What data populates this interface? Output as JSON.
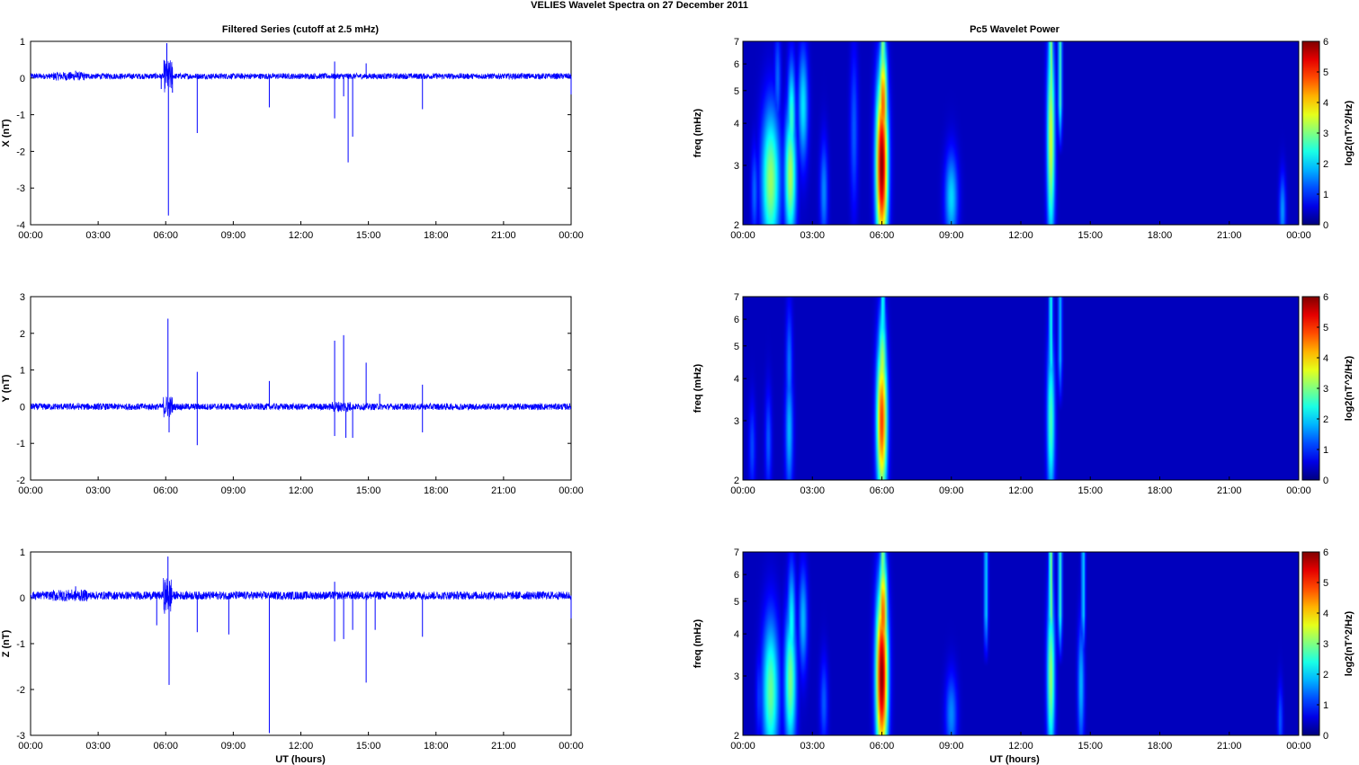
{
  "figure": {
    "suptitle": "VELIES Wavelet Spectra on 27 December  2011",
    "left_title": "Filtered Series (cutoff at 2.5 mHz)",
    "right_title": "Pc5 Wavelet Power",
    "xlabel": "UT (hours)",
    "x_ticks": [
      "00:00",
      "03:00",
      "06:00",
      "09:00",
      "12:00",
      "15:00",
      "18:00",
      "21:00",
      "00:00"
    ],
    "freq_label": "freq (mHz)",
    "colorbar_label": "log2(nT^2/Hz)",
    "colorbar_ticks": [
      "0",
      "1",
      "2",
      "3",
      "4",
      "5",
      "6"
    ],
    "colormap": "jet",
    "series_color": "#0000ff",
    "axis_color": "#000000",
    "spectrum_background": "#00008f"
  },
  "chart_data": [
    {
      "type": "line",
      "panel": "X filtered series",
      "ylabel": "X (nT)",
      "xlim": [
        0,
        24
      ],
      "ylim": [
        -4,
        1
      ],
      "y_ticks": [
        "1",
        "0",
        "-1",
        "-2",
        "-3",
        "-4"
      ],
      "baseline": 0.05,
      "noise_amplitude": 0.08,
      "bursts": [
        [
          1.0,
          2.4,
          0.12
        ],
        [
          5.9,
          6.3,
          0.45
        ]
      ],
      "spikes": [
        [
          2.0,
          0.2
        ],
        [
          5.8,
          -0.3
        ],
        [
          6.05,
          0.95
        ],
        [
          6.12,
          -3.75
        ],
        [
          6.3,
          -0.4
        ],
        [
          7.4,
          -1.5
        ],
        [
          10.6,
          -0.8
        ],
        [
          13.5,
          0.45
        ],
        [
          13.5,
          -1.1
        ],
        [
          13.9,
          -0.5
        ],
        [
          14.1,
          -2.3
        ],
        [
          14.3,
          -1.6
        ],
        [
          14.9,
          0.4
        ],
        [
          17.4,
          -0.85
        ],
        [
          24.0,
          -0.45
        ]
      ]
    },
    {
      "type": "line",
      "panel": "Y filtered series",
      "ylabel": "Y (nT)",
      "xlim": [
        0,
        24
      ],
      "ylim": [
        -2,
        3
      ],
      "y_ticks": [
        "3",
        "2",
        "1",
        "0",
        "-1",
        "-2"
      ],
      "baseline": 0.0,
      "noise_amplitude": 0.09,
      "bursts": [
        [
          5.9,
          6.3,
          0.3
        ],
        [
          13.4,
          14.2,
          0.15
        ]
      ],
      "spikes": [
        [
          6.1,
          2.4
        ],
        [
          6.15,
          -0.7
        ],
        [
          7.4,
          0.95
        ],
        [
          7.4,
          -1.05
        ],
        [
          9.7,
          0.1
        ],
        [
          10.6,
          0.7
        ],
        [
          13.5,
          1.8
        ],
        [
          13.5,
          -0.8
        ],
        [
          13.9,
          1.95
        ],
        [
          14.0,
          -0.85
        ],
        [
          14.3,
          -0.85
        ],
        [
          14.9,
          1.2
        ],
        [
          15.5,
          0.35
        ],
        [
          17.4,
          0.6
        ],
        [
          17.4,
          -0.7
        ]
      ]
    },
    {
      "type": "line",
      "panel": "Z filtered series",
      "ylabel": "Z (nT)",
      "xlim": [
        0,
        24
      ],
      "ylim": [
        -3,
        1
      ],
      "y_ticks": [
        "1",
        "0",
        "-1",
        "-2",
        "-3"
      ],
      "baseline": 0.05,
      "noise_amplitude": 0.09,
      "bursts": [
        [
          1.0,
          2.5,
          0.13
        ],
        [
          5.9,
          6.3,
          0.4
        ]
      ],
      "spikes": [
        [
          2.0,
          0.25
        ],
        [
          5.6,
          -0.6
        ],
        [
          6.1,
          0.9
        ],
        [
          6.15,
          -1.9
        ],
        [
          7.4,
          -0.75
        ],
        [
          8.8,
          -0.8
        ],
        [
          10.6,
          -2.95
        ],
        [
          13.5,
          0.35
        ],
        [
          13.5,
          -0.95
        ],
        [
          13.9,
          -0.9
        ],
        [
          14.3,
          -0.7
        ],
        [
          14.9,
          -1.85
        ],
        [
          15.3,
          -0.7
        ],
        [
          17.4,
          -0.85
        ],
        [
          24.0,
          -0.45
        ]
      ]
    },
    {
      "type": "heatmap",
      "panel": "X wavelet power",
      "ylabel": "freq (mHz)",
      "xlim": [
        0,
        24
      ],
      "ylim": [
        2,
        7
      ],
      "y_scale": "log",
      "y_ticks": [
        "7",
        "6",
        "5",
        "4",
        "3",
        "2"
      ],
      "colorbar": {
        "min": 0,
        "max": 6,
        "label": "log2(nT^2/Hz)"
      },
      "blobs": [
        {
          "t": 6.0,
          "f": 3.0,
          "wt": 0.18,
          "wf": 0.42,
          "power": 6
        },
        {
          "t": 6.05,
          "f": 4.5,
          "wt": 0.13,
          "wf": 0.3,
          "power": 4.7
        },
        {
          "t": 13.3,
          "f": 3.6,
          "wt": 0.12,
          "wf": 0.5,
          "power": 3.4
        },
        {
          "t": 1.2,
          "f": 2.7,
          "wt": 0.28,
          "wf": 0.35,
          "power": 3.0
        },
        {
          "t": 2.05,
          "f": 2.8,
          "wt": 0.18,
          "wf": 0.32,
          "power": 3.1
        },
        {
          "t": 2.1,
          "f": 4.1,
          "wt": 0.12,
          "wf": 0.28,
          "power": 2.4
        },
        {
          "t": 2.6,
          "f": 4.5,
          "wt": 0.15,
          "wf": 0.28,
          "power": 1.9
        },
        {
          "t": 9.0,
          "f": 2.4,
          "wt": 0.2,
          "wf": 0.22,
          "power": 1.8
        },
        {
          "t": 3.5,
          "f": 2.5,
          "wt": 0.12,
          "wf": 0.25,
          "power": 1.3
        },
        {
          "t": 4.8,
          "f": 3.8,
          "wt": 0.12,
          "wf": 0.4,
          "power": 1.0
        },
        {
          "t": 23.3,
          "f": 2.2,
          "wt": 0.1,
          "wf": 0.18,
          "power": 1.4
        },
        {
          "t": 0.5,
          "f": 2.5,
          "wt": 0.1,
          "wf": 0.22,
          "power": 1.1
        },
        {
          "t": 1.5,
          "f": 5.4,
          "wt": 0.1,
          "wf": 0.25,
          "power": 1.1
        }
      ],
      "streaks": [
        {
          "t": 6.05,
          "power": 3.2
        },
        {
          "t": 13.3,
          "power": 3.0
        },
        {
          "t": 13.7,
          "power": 2.4
        }
      ]
    },
    {
      "type": "heatmap",
      "panel": "Y wavelet power",
      "ylabel": "freq (mHz)",
      "xlim": [
        0,
        24
      ],
      "ylim": [
        2,
        7
      ],
      "y_scale": "log",
      "y_ticks": [
        "7",
        "6",
        "5",
        "4",
        "3",
        "2"
      ],
      "colorbar": {
        "min": 0,
        "max": 6,
        "label": "log2(nT^2/Hz)"
      },
      "blobs": [
        {
          "t": 6.0,
          "f": 3.0,
          "wt": 0.16,
          "wf": 0.38,
          "power": 4.9
        },
        {
          "t": 6.0,
          "f": 2.2,
          "wt": 0.16,
          "wf": 0.25,
          "power": 3.0
        },
        {
          "t": 6.02,
          "f": 4.2,
          "wt": 0.13,
          "wf": 0.3,
          "power": 3.3
        },
        {
          "t": 13.3,
          "f": 3.0,
          "wt": 0.12,
          "wf": 0.4,
          "power": 2.5
        },
        {
          "t": 2.0,
          "f": 2.8,
          "wt": 0.12,
          "wf": 0.3,
          "power": 1.6
        },
        {
          "t": 2.0,
          "f": 4.3,
          "wt": 0.1,
          "wf": 0.3,
          "power": 1.2
        },
        {
          "t": 1.1,
          "f": 2.6,
          "wt": 0.1,
          "wf": 0.25,
          "power": 1.0
        },
        {
          "t": 0.4,
          "f": 2.5,
          "wt": 0.1,
          "wf": 0.22,
          "power": 0.9
        }
      ],
      "streaks": [
        {
          "t": 6.05,
          "power": 2.3
        },
        {
          "t": 13.3,
          "power": 2.2
        },
        {
          "t": 13.7,
          "power": 1.6
        }
      ]
    },
    {
      "type": "heatmap",
      "panel": "Z wavelet power",
      "ylabel": "freq (mHz)",
      "xlim": [
        0,
        24
      ],
      "ylim": [
        2,
        7
      ],
      "y_scale": "log",
      "y_ticks": [
        "7",
        "6",
        "5",
        "4",
        "3",
        "2"
      ],
      "colorbar": {
        "min": 0,
        "max": 6,
        "label": "log2(nT^2/Hz)"
      },
      "blobs": [
        {
          "t": 6.0,
          "f": 3.0,
          "wt": 0.18,
          "wf": 0.42,
          "power": 6
        },
        {
          "t": 6.05,
          "f": 4.5,
          "wt": 0.13,
          "wf": 0.3,
          "power": 4.7
        },
        {
          "t": 13.3,
          "f": 3.0,
          "wt": 0.12,
          "wf": 0.4,
          "power": 3.0
        },
        {
          "t": 13.3,
          "f": 4.4,
          "wt": 0.1,
          "wf": 0.3,
          "power": 2.0
        },
        {
          "t": 1.2,
          "f": 2.7,
          "wt": 0.25,
          "wf": 0.35,
          "power": 2.7
        },
        {
          "t": 2.05,
          "f": 2.9,
          "wt": 0.18,
          "wf": 0.34,
          "power": 2.8
        },
        {
          "t": 2.1,
          "f": 4.2,
          "wt": 0.12,
          "wf": 0.3,
          "power": 2.1
        },
        {
          "t": 2.6,
          "f": 4.4,
          "wt": 0.13,
          "wf": 0.25,
          "power": 1.6
        },
        {
          "t": 14.6,
          "f": 2.8,
          "wt": 0.1,
          "wf": 0.3,
          "power": 1.6
        },
        {
          "t": 9.0,
          "f": 2.3,
          "wt": 0.18,
          "wf": 0.2,
          "power": 1.3
        },
        {
          "t": 3.5,
          "f": 2.5,
          "wt": 0.12,
          "wf": 0.22,
          "power": 1.0
        },
        {
          "t": 23.2,
          "f": 2.2,
          "wt": 0.08,
          "wf": 0.18,
          "power": 1.0
        },
        {
          "t": 0.7,
          "f": 2.6,
          "wt": 0.1,
          "wf": 0.22,
          "power": 0.8
        }
      ],
      "streaks": [
        {
          "t": 6.05,
          "power": 3.2
        },
        {
          "t": 10.5,
          "power": 1.8
        },
        {
          "t": 13.3,
          "power": 2.9
        },
        {
          "t": 13.7,
          "power": 2.3
        },
        {
          "t": 14.7,
          "power": 1.8
        }
      ]
    }
  ]
}
